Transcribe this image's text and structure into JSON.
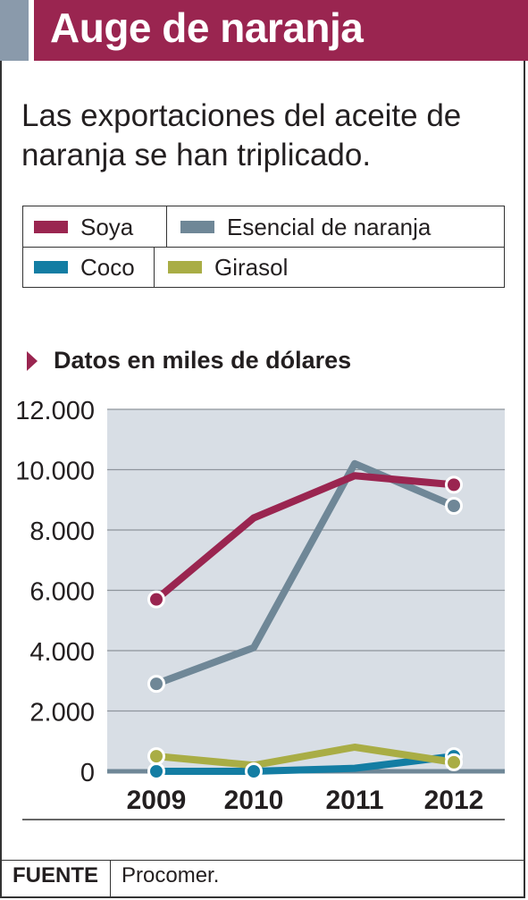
{
  "header": {
    "title": "Auge de naranja"
  },
  "subtitle": "Las exportaciones del aceite de naranja se han triplicado.",
  "unit_label": "Datos en miles de dólares",
  "source": {
    "label": "FUENTE",
    "text": "Procomer."
  },
  "colors": {
    "soya": "#9a2550",
    "naranja": "#6f8797",
    "coco": "#137da3",
    "girasol": "#a9ad45",
    "plot_bg": "#d8dee5",
    "header_bg": "#9a2550"
  },
  "chart_data": {
    "type": "line",
    "title": "",
    "xlabel": "",
    "ylabel": "",
    "categories": [
      "2009",
      "2010",
      "2011",
      "2012"
    ],
    "ylim": [
      0,
      12000
    ],
    "yticks": [
      0,
      2000,
      4000,
      6000,
      8000,
      10000,
      12000
    ],
    "ytick_labels": [
      "0",
      "2.000",
      "4.000",
      "6.000",
      "8.000",
      "10.000",
      "12.000"
    ],
    "grid": true,
    "legend_position": "top",
    "series": [
      {
        "name": "Soya",
        "key": "soya",
        "values": [
          5700,
          8400,
          9800,
          9500
        ]
      },
      {
        "name": "Esencial de naranja",
        "key": "naranja",
        "values": [
          2900,
          4100,
          10200,
          8800
        ]
      },
      {
        "name": "Coco",
        "key": "coco",
        "values": [
          0,
          0,
          100,
          500
        ]
      },
      {
        "name": "Girasol",
        "key": "girasol",
        "values": [
          500,
          200,
          800,
          300
        ]
      }
    ]
  }
}
